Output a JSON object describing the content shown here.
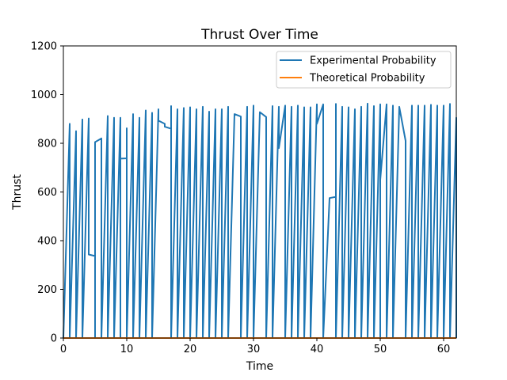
{
  "chart_data": {
    "type": "line",
    "title": "Thrust Over Time",
    "xlabel": "Time",
    "ylabel": "Thrust",
    "xlim": [
      0,
      62
    ],
    "ylim": [
      0,
      1200
    ],
    "xticks": [
      0,
      10,
      20,
      30,
      40,
      50,
      60
    ],
    "yticks": [
      0,
      200,
      400,
      600,
      800,
      1000,
      1200
    ],
    "legend_position": "top-right",
    "grid": false,
    "series": [
      {
        "name": "Experimental Probability",
        "color": "#1f77b4",
        "points": [
          [
            0,
            0
          ],
          [
            1,
            880
          ],
          [
            1,
            0
          ],
          [
            2,
            850
          ],
          [
            2,
            0
          ],
          [
            3,
            898
          ],
          [
            3,
            0
          ],
          [
            4,
            902
          ],
          [
            4,
            343
          ],
          [
            5,
            337
          ],
          [
            5,
            0
          ],
          [
            5,
            805
          ],
          [
            6,
            820
          ],
          [
            6,
            0
          ],
          [
            7,
            912
          ],
          [
            7,
            0
          ],
          [
            8,
            905
          ],
          [
            8,
            0
          ],
          [
            9,
            905
          ],
          [
            9,
            0
          ],
          [
            9,
            737
          ],
          [
            10,
            738
          ],
          [
            10,
            862
          ],
          [
            10,
            0
          ],
          [
            11,
            920
          ],
          [
            11,
            0
          ],
          [
            12,
            905
          ],
          [
            12,
            0
          ],
          [
            13,
            935
          ],
          [
            13,
            0
          ],
          [
            14,
            925
          ],
          [
            14,
            0
          ],
          [
            15,
            940
          ],
          [
            15,
            893
          ],
          [
            16,
            880
          ],
          [
            16,
            868
          ],
          [
            17,
            860
          ],
          [
            17,
            0
          ],
          [
            17,
            953
          ],
          [
            17,
            0
          ],
          [
            18,
            940
          ],
          [
            18,
            0
          ],
          [
            19,
            945
          ],
          [
            19,
            0
          ],
          [
            20,
            948
          ],
          [
            20,
            0
          ],
          [
            21,
            940
          ],
          [
            21,
            0
          ],
          [
            22,
            950
          ],
          [
            22,
            0
          ],
          [
            23,
            930
          ],
          [
            23,
            0
          ],
          [
            24,
            940
          ],
          [
            24,
            0
          ],
          [
            25,
            940
          ],
          [
            25,
            0
          ],
          [
            26,
            950
          ],
          [
            26,
            0
          ],
          [
            27,
            920
          ],
          [
            28,
            910
          ],
          [
            28,
            0
          ],
          [
            29,
            950
          ],
          [
            29,
            0
          ],
          [
            30,
            955
          ],
          [
            30,
            0
          ],
          [
            31,
            928
          ],
          [
            32,
            908
          ],
          [
            32,
            0
          ],
          [
            33,
            953
          ],
          [
            33,
            0
          ],
          [
            34,
            950
          ],
          [
            34,
            780
          ],
          [
            35,
            955
          ],
          [
            35,
            0
          ],
          [
            36,
            950
          ],
          [
            36,
            0
          ],
          [
            37,
            955
          ],
          [
            37,
            0
          ],
          [
            38,
            948
          ],
          [
            38,
            0
          ],
          [
            39,
            948
          ],
          [
            39,
            0
          ],
          [
            40,
            960
          ],
          [
            40,
            880
          ],
          [
            41,
            960
          ],
          [
            41,
            0
          ],
          [
            42,
            575
          ],
          [
            43,
            580
          ],
          [
            43,
            962
          ],
          [
            43,
            0
          ],
          [
            44,
            950
          ],
          [
            44,
            0
          ],
          [
            45,
            948
          ],
          [
            45,
            0
          ],
          [
            46,
            940
          ],
          [
            46,
            0
          ],
          [
            47,
            950
          ],
          [
            47,
            0
          ],
          [
            48,
            963
          ],
          [
            48,
            0
          ],
          [
            49,
            953
          ],
          [
            49,
            0
          ],
          [
            50,
            960
          ],
          [
            50,
            0
          ],
          [
            50,
            650
          ],
          [
            51,
            960
          ],
          [
            51,
            0
          ],
          [
            52,
            955
          ],
          [
            52,
            0
          ],
          [
            53,
            950
          ],
          [
            54,
            810
          ],
          [
            54,
            0
          ],
          [
            55,
            955
          ],
          [
            55,
            0
          ],
          [
            56,
            955
          ],
          [
            56,
            0
          ],
          [
            57,
            955
          ],
          [
            57,
            0
          ],
          [
            58,
            958
          ],
          [
            58,
            0
          ],
          [
            59,
            955
          ],
          [
            59,
            0
          ],
          [
            60,
            955
          ],
          [
            60,
            0
          ],
          [
            61,
            962
          ],
          [
            61,
            0
          ],
          [
            62,
            905
          ],
          [
            62,
            0
          ]
        ]
      },
      {
        "name": "Theoretical Probability",
        "color": "#ff7f0e",
        "points": [
          [
            0,
            0
          ],
          [
            62,
            0
          ]
        ]
      }
    ]
  }
}
